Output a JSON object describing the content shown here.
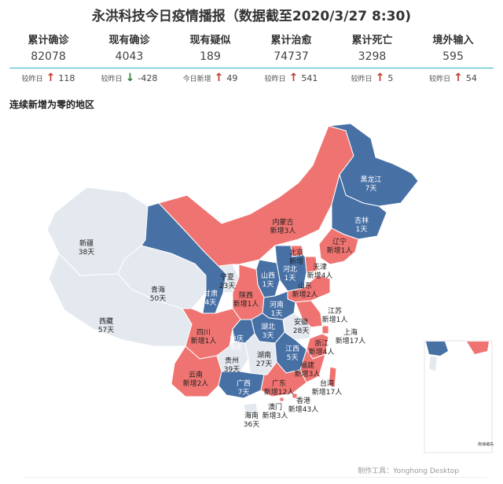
{
  "title": "永洪科技今日疫情播报（数据截至2020/3/27 8:30)",
  "stats": [
    {
      "label": "累计确诊",
      "value": "82078",
      "delta_label": "较昨日",
      "delta": "118",
      "dir": "up"
    },
    {
      "label": "现有确诊",
      "value": "4043",
      "delta_label": "较昨日",
      "delta": "-428",
      "dir": "down"
    },
    {
      "label": "现有疑似",
      "value": "189",
      "delta_label": "今日新增",
      "delta": "49",
      "dir": "up"
    },
    {
      "label": "累计治愈",
      "value": "74737",
      "delta_label": "较昨日",
      "delta": "541",
      "dir": "up"
    },
    {
      "label": "累计死亡",
      "value": "3298",
      "delta_label": "较昨日",
      "delta": "5",
      "dir": "up"
    },
    {
      "label": "境外输入",
      "value": "595",
      "delta_label": "较昨日",
      "delta": "54",
      "dir": "up"
    }
  ],
  "section_title": "连续新增为零的地区",
  "colors": {
    "new_cases": "#ef7471",
    "zero_days": "#4770a5",
    "long_zero": "#e4e9ef",
    "border": "#ffffff"
  },
  "map": {
    "regions": [
      {
        "name": "新疆",
        "line1": "新疆",
        "line2": "38天",
        "status": "long_zero"
      },
      {
        "name": "西藏",
        "line1": "西藏",
        "line2": "57天",
        "status": "long_zero"
      },
      {
        "name": "青海",
        "line1": "青海",
        "line2": "50天",
        "status": "long_zero"
      },
      {
        "name": "甘肃",
        "line1": "甘肃",
        "line2": "4天",
        "status": "zero_days"
      },
      {
        "name": "宁夏",
        "line1": "宁夏",
        "line2": "23天",
        "status": "long_zero"
      },
      {
        "name": "内蒙古",
        "line1": "内蒙古",
        "line2": "新增3人",
        "status": "new_cases"
      },
      {
        "name": "黑龙江",
        "line1": "黑龙江",
        "line2": "7天",
        "status": "zero_days"
      },
      {
        "name": "吉林",
        "line1": "吉林",
        "line2": "1天",
        "status": "zero_days"
      },
      {
        "name": "辽宁",
        "line1": "辽宁",
        "line2": "新增1人",
        "status": "new_cases"
      },
      {
        "name": "北京",
        "line1": "北京",
        "line2": "新增",
        "status": "new_cases"
      },
      {
        "name": "天津",
        "line1": "天津",
        "line2": "新增4人",
        "status": "new_cases"
      },
      {
        "name": "河北",
        "line1": "河北",
        "line2": "1天",
        "status": "zero_days"
      },
      {
        "name": "山西",
        "line1": "山西",
        "line2": "1天",
        "status": "zero_days"
      },
      {
        "name": "山东",
        "line1": "山东",
        "line2": "新增2人",
        "status": "new_cases"
      },
      {
        "name": "陕西",
        "line1": "陕西",
        "line2": "新增1人",
        "status": "new_cases"
      },
      {
        "name": "河南",
        "line1": "河南",
        "line2": "1天",
        "status": "zero_days"
      },
      {
        "name": "江苏",
        "line1": "江苏",
        "line2": "新增1人",
        "status": "new_cases"
      },
      {
        "name": "安徽",
        "line1": "安徽",
        "line2": "28天",
        "status": "long_zero"
      },
      {
        "name": "上海",
        "line1": "上海",
        "line2": "新增17人",
        "status": "new_cases"
      },
      {
        "name": "四川",
        "line1": "四川",
        "line2": "新增1人",
        "status": "new_cases"
      },
      {
        "name": "重庆",
        "line1": "重庆",
        "line2": "8天",
        "status": "zero_days"
      },
      {
        "name": "湖北",
        "line1": "湖北",
        "line2": "3天",
        "status": "zero_days"
      },
      {
        "name": "浙江",
        "line1": "浙江",
        "line2": "新增4人",
        "status": "new_cases"
      },
      {
        "name": "贵州",
        "line1": "贵州",
        "line2": "39天",
        "status": "long_zero"
      },
      {
        "name": "湖南",
        "line1": "湖南",
        "line2": "27天",
        "status": "long_zero"
      },
      {
        "name": "江西",
        "line1": "江西",
        "line2": "5天",
        "status": "zero_days"
      },
      {
        "name": "福建",
        "line1": "福建",
        "line2": "新增3人",
        "status": "new_cases"
      },
      {
        "name": "云南",
        "line1": "云南",
        "line2": "新增2人",
        "status": "new_cases"
      },
      {
        "name": "广西",
        "line1": "广西",
        "line2": "7天",
        "status": "zero_days"
      },
      {
        "name": "广东",
        "line1": "广东",
        "line2": "新增12人",
        "status": "new_cases"
      },
      {
        "name": "台湾",
        "line1": "台湾",
        "line2": "新增17人",
        "status": "new_cases"
      },
      {
        "name": "香港",
        "line1": "香港",
        "line2": "新增43人",
        "status": "new_cases"
      },
      {
        "name": "澳门",
        "line1": "澳门",
        "line2": "新增3人",
        "status": "new_cases"
      },
      {
        "name": "海南",
        "line1": "海南",
        "line2": "36天",
        "status": "long_zero"
      }
    ],
    "inset_note": "南海诸岛"
  },
  "footer": "制作工具：Yonghong Desktop"
}
